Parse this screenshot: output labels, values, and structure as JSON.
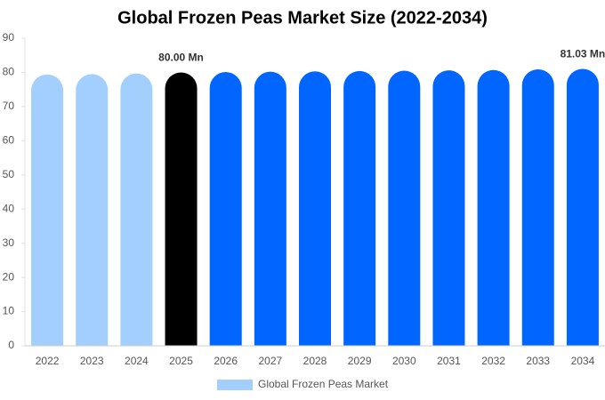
{
  "chart_data": {
    "type": "bar",
    "title": "Global Frozen Peas Market Size (2022-2034)",
    "categories": [
      "2022",
      "2023",
      "2024",
      "2025",
      "2026",
      "2027",
      "2028",
      "2029",
      "2030",
      "2031",
      "2032",
      "2033",
      "2034"
    ],
    "series": [
      {
        "name": "Global Frozen Peas Market",
        "color": "#a3cfff",
        "colors": [
          "#a3cfff",
          "#a3cfff",
          "#a3cfff",
          "#000000",
          "#0066ff",
          "#0066ff",
          "#0066ff",
          "#0066ff",
          "#0066ff",
          "#0066ff",
          "#0066ff",
          "#0066ff",
          "#0066ff"
        ],
        "values": [
          79.4,
          79.5,
          79.7,
          80.0,
          80.1,
          80.2,
          80.3,
          80.4,
          80.5,
          80.6,
          80.7,
          80.9,
          81.03
        ],
        "value_labels": [
          null,
          null,
          null,
          "80.00 Mn",
          null,
          null,
          null,
          null,
          null,
          null,
          null,
          null,
          "81.03 Mn"
        ]
      }
    ],
    "ylim": [
      0,
      90
    ],
    "yticks": [
      0,
      10,
      20,
      30,
      40,
      50,
      60,
      70,
      80,
      90
    ],
    "legend": "bottom"
  }
}
